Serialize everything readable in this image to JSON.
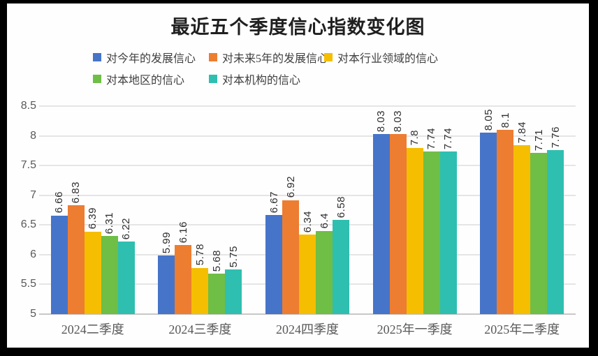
{
  "palette": {
    "frame": "#000000",
    "canvas_bg": "#FEFEFE",
    "gridline": "#E5E5E5",
    "axis_line": "#C8C8C8",
    "tick_text": "#595959",
    "category_text": "#595959",
    "bar_label_text": "#2E2E2E",
    "legend_text": "#3F3F3F",
    "title_text": "#1F1F1F"
  },
  "chart_data": {
    "type": "bar",
    "title": "最近五个季度信心指数变化图",
    "categories": [
      "2024二季度",
      "2024三季度",
      "2024四季度",
      "2025年一季度",
      "2025年二季度"
    ],
    "series": [
      {
        "name": "对今年的发展信心",
        "color": "#4674C9",
        "values": [
          6.66,
          5.99,
          6.67,
          8.03,
          8.05
        ]
      },
      {
        "name": "对未来5年的发展信心",
        "color": "#ED7D31",
        "values": [
          6.83,
          6.16,
          6.92,
          8.03,
          8.1
        ]
      },
      {
        "name": "对本行业领域的信心",
        "color": "#F5BE00",
        "values": [
          6.39,
          5.78,
          6.34,
          7.8,
          7.84
        ]
      },
      {
        "name": "对本地区的信心",
        "color": "#6FBE45",
        "values": [
          6.31,
          5.68,
          6.4,
          7.74,
          7.71
        ]
      },
      {
        "name": "对本机构的信心",
        "color": "#2FBFB0",
        "values": [
          6.22,
          5.75,
          6.58,
          7.74,
          7.76
        ]
      }
    ],
    "ylim": [
      5,
      8.5
    ],
    "ytick_step": 0.5,
    "yticks": [
      "8.5",
      "8",
      "7.5",
      "7",
      "6.5",
      "6",
      "5.5",
      "5"
    ],
    "grid": true,
    "legend_position": "top",
    "data_labels": {
      "shown": true,
      "rotation": -90
    }
  }
}
